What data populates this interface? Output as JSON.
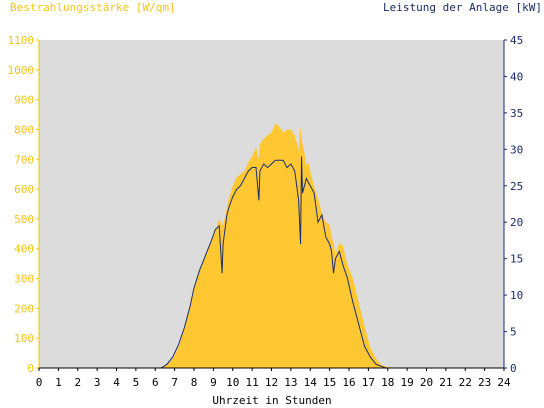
{
  "chart_data": {
    "type": "area",
    "title": "",
    "ylabel_left": "Bestrahlungsstärke [W/qm]",
    "ylabel_right": "Leistung der Anlage [kW]",
    "xlabel": "Uhrzeit in Stunden",
    "xlim": [
      0,
      24
    ],
    "ylim_left": [
      0,
      1100
    ],
    "ylim_right": [
      0,
      45
    ],
    "x_ticks": [
      0,
      1,
      2,
      3,
      4,
      5,
      6,
      7,
      8,
      9,
      10,
      11,
      12,
      13,
      14,
      15,
      16,
      17,
      18,
      19,
      20,
      21,
      22,
      23,
      24
    ],
    "y_ticks_left": [
      0,
      100,
      200,
      300,
      400,
      500,
      600,
      700,
      800,
      900,
      1000,
      1100
    ],
    "y_ticks_right": [
      0,
      5,
      10,
      15,
      20,
      25,
      30,
      35,
      40,
      45
    ],
    "grid": false,
    "colors": {
      "irradiance": "#ffc832",
      "power": "#1a2d6b",
      "plot_bg": "#dcdcdc",
      "left_axis": "#f5c518",
      "right_axis": "#1a2d6b"
    },
    "series": [
      {
        "name": "Bestrahlungsstärke",
        "axis": "left",
        "x": [
          6.3,
          6.6,
          6.9,
          7.2,
          7.5,
          7.8,
          8.0,
          8.3,
          8.6,
          8.9,
          9.1,
          9.3,
          9.45,
          9.5,
          9.7,
          9.8,
          10.0,
          10.2,
          10.4,
          10.6,
          10.8,
          11.0,
          11.2,
          11.35,
          11.4,
          11.6,
          11.8,
          12.0,
          12.2,
          12.4,
          12.6,
          12.8,
          13.0,
          13.2,
          13.4,
          13.5,
          13.6,
          13.7,
          13.8,
          13.9,
          14.0,
          14.2,
          14.4,
          14.6,
          14.8,
          15.0,
          15.1,
          15.2,
          15.3,
          15.5,
          15.7,
          15.9,
          16.2,
          16.5,
          16.8,
          17.1,
          17.4,
          17.7,
          17.9,
          18.2,
          18.5
        ],
        "y": [
          0,
          10,
          30,
          70,
          130,
          210,
          270,
          330,
          380,
          430,
          460,
          500,
          480,
          480,
          540,
          570,
          610,
          640,
          650,
          660,
          690,
          710,
          740,
          700,
          750,
          770,
          780,
          790,
          820,
          810,
          790,
          800,
          800,
          780,
          730,
          810,
          750,
          720,
          680,
          690,
          660,
          610,
          570,
          520,
          490,
          480,
          440,
          420,
          380,
          420,
          410,
          350,
          300,
          220,
          140,
          70,
          30,
          10,
          5,
          0,
          0
        ]
      },
      {
        "name": "Leistung",
        "axis": "right",
        "x": [
          6.3,
          6.6,
          6.9,
          7.2,
          7.5,
          7.8,
          8.0,
          8.3,
          8.6,
          8.9,
          9.1,
          9.3,
          9.45,
          9.5,
          9.7,
          9.8,
          10.0,
          10.2,
          10.4,
          10.6,
          10.8,
          11.0,
          11.2,
          11.35,
          11.4,
          11.6,
          11.8,
          12.0,
          12.2,
          12.4,
          12.6,
          12.8,
          13.0,
          13.2,
          13.4,
          13.5,
          13.55,
          13.6,
          13.7,
          13.8,
          13.9,
          14.0,
          14.2,
          14.4,
          14.6,
          14.8,
          15.0,
          15.1,
          15.2,
          15.3,
          15.5,
          15.7,
          15.9,
          16.2,
          16.5,
          16.8,
          17.1,
          17.4,
          17.7,
          17.9,
          18.2,
          18.5
        ],
        "y": [
          0,
          0.5,
          1.5,
          3.2,
          5.5,
          8.5,
          11,
          13.5,
          15.5,
          17.5,
          19,
          19.5,
          13,
          17,
          21,
          22,
          23.5,
          24.5,
          25,
          26,
          27,
          27.5,
          27.5,
          23,
          27,
          28,
          27.5,
          28,
          28.5,
          28.5,
          28.5,
          27.5,
          28,
          27,
          23,
          17,
          29,
          24,
          25,
          26,
          25.5,
          25,
          24,
          20,
          21,
          18,
          17,
          16,
          13,
          15,
          16,
          14,
          12.5,
          9,
          6,
          3,
          1.5,
          0.5,
          0.2,
          0,
          0,
          0
        ]
      }
    ]
  }
}
